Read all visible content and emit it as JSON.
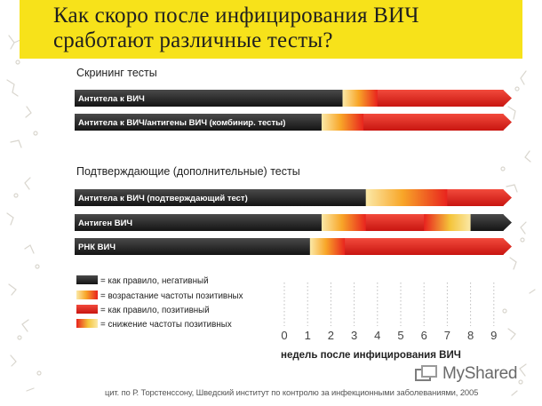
{
  "title": {
    "line1": "Как скоро после инфицирования ВИЧ",
    "line2": "сработают различные тесты?"
  },
  "brand": {
    "name": "MyShared",
    "icon": "myshared-logo-icon"
  },
  "footer": "цит. по Р. Торстенссону, Шведский институт по контролю за инфекционными заболеваниями, 2005",
  "colors": {
    "negative": "#2b2b2b",
    "rising_positive": "#f8a628",
    "positive": "#e8221e",
    "falling_positive": "#f4c43a",
    "title_bg": "#f7e21a"
  },
  "chart_data": {
    "type": "bar",
    "xlabel": "недель после инфицирования ВИЧ",
    "xticks": [
      0,
      1,
      2,
      3,
      4,
      5,
      6,
      7,
      8,
      9
    ],
    "xlim": [
      0,
      9.7
    ],
    "groups": [
      {
        "heading": "Скрининг тесты",
        "bars": [
          {
            "label": "Антитела к ВИЧ",
            "segments": [
              {
                "state": "negative",
                "from": 0,
                "to": 2.5
              },
              {
                "state": "rising_positive",
                "from": 2.5,
                "to": 4.0
              },
              {
                "state": "positive",
                "from": 4.0,
                "to": 9.7
              }
            ]
          },
          {
            "label": "Антитела к ВИЧ/антигены ВИЧ (комбинир. тесты)",
            "segments": [
              {
                "state": "negative",
                "from": 0,
                "to": 1.6
              },
              {
                "state": "rising_positive",
                "from": 1.6,
                "to": 3.4
              },
              {
                "state": "positive",
                "from": 3.4,
                "to": 9.7
              }
            ]
          }
        ]
      },
      {
        "heading": "Подтверждающие (дополнительные) тесты",
        "bars": [
          {
            "label": "Антитела к ВИЧ (подтверждающий тест)",
            "segments": [
              {
                "state": "negative",
                "from": 0,
                "to": 3.5
              },
              {
                "state": "rising_positive",
                "from": 3.5,
                "to": 7.0
              },
              {
                "state": "positive",
                "from": 7.0,
                "to": 9.7
              }
            ]
          },
          {
            "label": "Антиген ВИЧ",
            "segments": [
              {
                "state": "negative",
                "from": 0,
                "to": 1.6
              },
              {
                "state": "rising_positive",
                "from": 1.6,
                "to": 3.5
              },
              {
                "state": "positive",
                "from": 3.5,
                "to": 6.0
              },
              {
                "state": "falling_positive",
                "from": 6.0,
                "to": 8.0
              },
              {
                "state": "negative",
                "from": 8.0,
                "to": 9.7
              }
            ]
          },
          {
            "label": "РНК ВИЧ",
            "segments": [
              {
                "state": "negative",
                "from": 0,
                "to": 1.1
              },
              {
                "state": "rising_positive",
                "from": 1.1,
                "to": 2.6
              },
              {
                "state": "positive",
                "from": 2.6,
                "to": 9.7
              }
            ]
          }
        ]
      }
    ],
    "legend": [
      {
        "state": "negative",
        "label": "= как правило, негативный"
      },
      {
        "state": "rising_positive",
        "label": "= возрастание частоты позитивных"
      },
      {
        "state": "positive",
        "label": "= как правило, позитивный"
      },
      {
        "state": "falling_positive",
        "label": "= снижение частоты позитивных"
      }
    ]
  }
}
